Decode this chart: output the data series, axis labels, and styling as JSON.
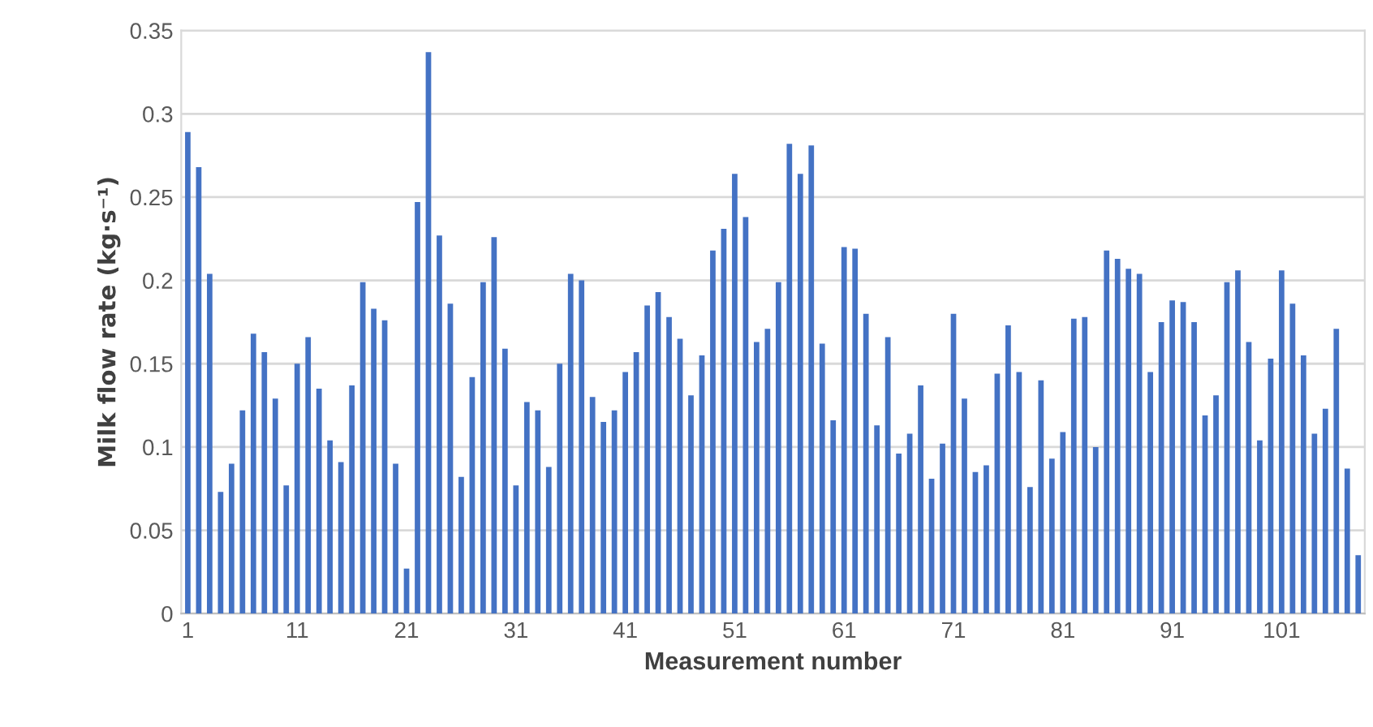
{
  "chart_data": {
    "type": "bar",
    "xlabel": "Measurement number",
    "ylabel": "Milk flow rate (kg·s⁻¹)",
    "categories": [
      "1",
      null,
      null,
      null,
      null,
      null,
      null,
      null,
      null,
      null,
      "11",
      null,
      null,
      null,
      null,
      null,
      null,
      null,
      null,
      null,
      "21",
      null,
      null,
      null,
      null,
      null,
      null,
      null,
      null,
      null,
      "31",
      null,
      null,
      null,
      null,
      null,
      null,
      null,
      null,
      null,
      "41",
      null,
      null,
      null,
      null,
      null,
      null,
      null,
      null,
      null,
      "51",
      null,
      null,
      null,
      null,
      null,
      null,
      null,
      null,
      null,
      "61",
      null,
      null,
      null,
      null,
      null,
      null,
      null,
      null,
      null,
      "71",
      null,
      null,
      null,
      null,
      null,
      null,
      null,
      null,
      null,
      "81",
      null,
      null,
      null,
      null,
      null,
      null,
      null,
      null,
      null,
      "91",
      null,
      null,
      null,
      null,
      null,
      null,
      null,
      null,
      null,
      "101",
      null,
      null,
      null,
      null,
      null,
      null,
      null
    ],
    "values": [
      0.289,
      0.268,
      0.204,
      0.073,
      0.09,
      0.122,
      0.168,
      0.157,
      0.129,
      0.077,
      0.15,
      0.166,
      0.135,
      0.104,
      0.091,
      0.137,
      0.199,
      0.183,
      0.176,
      0.09,
      0.027,
      0.247,
      0.337,
      0.227,
      0.186,
      0.082,
      0.142,
      0.199,
      0.226,
      0.159,
      0.077,
      0.127,
      0.122,
      0.088,
      0.15,
      0.204,
      0.2,
      0.13,
      0.115,
      0.122,
      0.145,
      0.157,
      0.185,
      0.193,
      0.178,
      0.165,
      0.131,
      0.155,
      0.218,
      0.231,
      0.264,
      0.238,
      0.163,
      0.171,
      0.199,
      0.282,
      0.264,
      0.281,
      0.162,
      0.116,
      0.22,
      0.219,
      0.18,
      0.113,
      0.166,
      0.096,
      0.108,
      0.137,
      0.081,
      0.102,
      0.18,
      0.129,
      0.085,
      0.089,
      0.144,
      0.173,
      0.145,
      0.076,
      0.14,
      0.093,
      0.109,
      0.177,
      0.178,
      0.1,
      0.218,
      0.213,
      0.207,
      0.204,
      0.145,
      0.175,
      0.188,
      0.187,
      0.175,
      0.119,
      0.131,
      0.199,
      0.206,
      0.163,
      0.104,
      0.153,
      0.206,
      0.186,
      0.155,
      0.108,
      0.123,
      0.171,
      0.087,
      0.035
    ],
    "color": "#4472c4",
    "ylim": [
      0,
      0.35
    ],
    "yticks": [
      0,
      0.05,
      0.1,
      0.15,
      0.2,
      0.25,
      0.3,
      0.35
    ],
    "grid": "y"
  }
}
